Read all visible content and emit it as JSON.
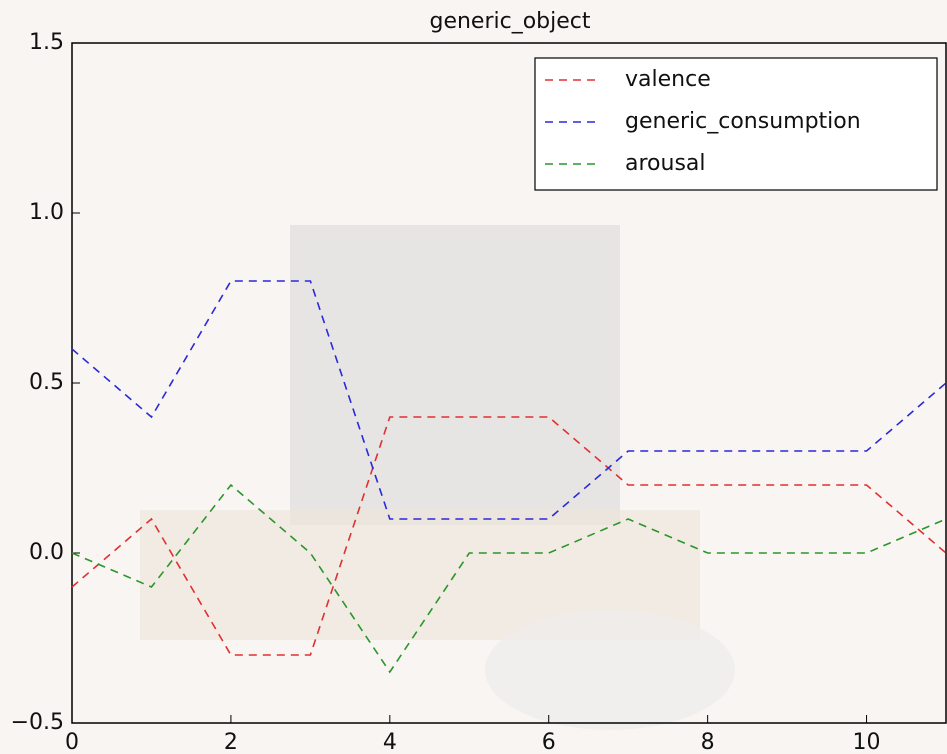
{
  "chart_data": {
    "type": "line",
    "title": "generic_object",
    "x": [
      0,
      1,
      2,
      3,
      4,
      5,
      6,
      7,
      8,
      9,
      10,
      11
    ],
    "series": [
      {
        "name": "valence",
        "color": "#e03030",
        "values": [
          -0.1,
          0.1,
          -0.3,
          -0.3,
          0.4,
          0.4,
          0.4,
          0.2,
          0.2,
          0.2,
          0.2,
          0.0
        ]
      },
      {
        "name": "generic_consumption",
        "color": "#2a2ad8",
        "values": [
          0.6,
          0.4,
          0.8,
          0.8,
          0.1,
          0.1,
          0.1,
          0.3,
          0.3,
          0.3,
          0.3,
          0.5
        ]
      },
      {
        "name": "arousal",
        "color": "#2a962a",
        "values": [
          0.0,
          -0.1,
          0.2,
          0.0,
          -0.35,
          0.0,
          0.0,
          0.1,
          0.0,
          0.0,
          0.0,
          0.1
        ]
      }
    ],
    "xlim": [
      0,
      11
    ],
    "xticks": [
      0,
      2,
      4,
      6,
      8,
      10
    ],
    "ylim": [
      -0.5,
      1.5
    ],
    "yticks": [
      {
        "value": -0.5,
        "label": "−0.5"
      },
      {
        "value": 0,
        "label": "0.0"
      },
      {
        "value": 0.5,
        "label": "0.5"
      },
      {
        "value": 1,
        "label": "1.0"
      },
      {
        "value": 1.5,
        "label": "1.5"
      }
    ],
    "grid": false,
    "legend": "upper right"
  }
}
